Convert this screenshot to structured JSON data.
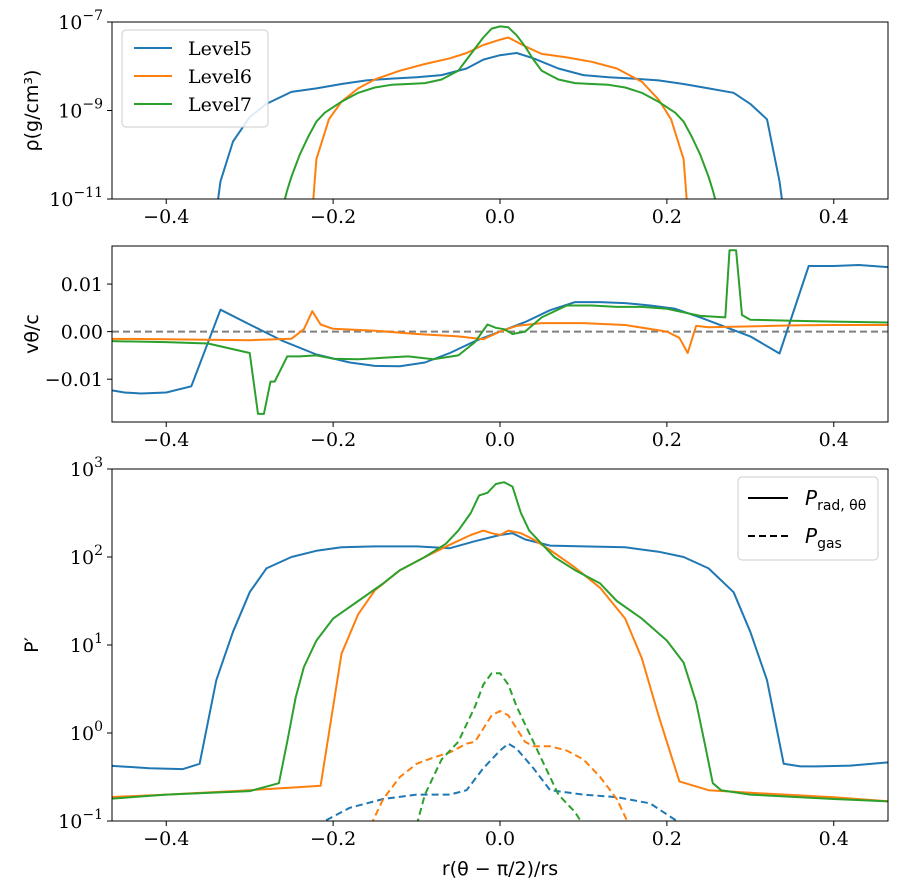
{
  "chart_data": [
    {
      "type": "line",
      "ylabel": "ρ(g/cm³)",
      "yscale": "log",
      "xlim": [
        -0.465,
        0.465
      ],
      "ylim_exp": [
        -11,
        -7
      ],
      "x_ticks": [
        "−0.4",
        "−0.2",
        "0.0",
        "0.2",
        "0.4"
      ],
      "y_ticks": [
        {
          "base": "10",
          "exp": "−11",
          "value": -11
        },
        {
          "base": "10",
          "exp": "−9",
          "value": -9
        },
        {
          "base": "10",
          "exp": "−7",
          "value": -7
        }
      ],
      "legend": {
        "placement": "upper-left",
        "entries": [
          "Level5",
          "Level6",
          "Level7"
        ]
      },
      "series": [
        {
          "name": "Level5",
          "color": "#1f77b4",
          "style": "solid",
          "x": [
            -0.34,
            -0.335,
            -0.32,
            -0.3,
            -0.28,
            -0.25,
            -0.22,
            -0.19,
            -0.16,
            -0.13,
            -0.1,
            -0.07,
            -0.04,
            -0.02,
            0.0,
            0.02,
            0.04,
            0.07,
            0.1,
            0.13,
            0.16,
            0.19,
            0.22,
            0.25,
            0.28,
            0.3,
            0.32,
            0.335,
            0.34
          ],
          "y": [
            -11.3,
            -10.6,
            -9.7,
            -9.15,
            -8.85,
            -8.58,
            -8.5,
            -8.4,
            -8.32,
            -8.28,
            -8.25,
            -8.2,
            -8.05,
            -7.85,
            -7.75,
            -7.7,
            -7.82,
            -8.05,
            -8.2,
            -8.25,
            -8.28,
            -8.32,
            -8.4,
            -8.5,
            -8.6,
            -8.85,
            -9.2,
            -10.6,
            -11.3
          ]
        },
        {
          "name": "Level6",
          "color": "#ff7f0e",
          "style": "solid",
          "x": [
            -0.225,
            -0.22,
            -0.205,
            -0.19,
            -0.17,
            -0.15,
            -0.12,
            -0.09,
            -0.06,
            -0.04,
            -0.02,
            0.0,
            0.01,
            0.03,
            0.05,
            0.08,
            0.11,
            0.14,
            0.17,
            0.19,
            0.205,
            0.22,
            0.225
          ],
          "y": [
            -11.3,
            -10.1,
            -9.2,
            -8.8,
            -8.5,
            -8.3,
            -8.1,
            -7.95,
            -7.82,
            -7.7,
            -7.52,
            -7.4,
            -7.35,
            -7.55,
            -7.72,
            -7.8,
            -7.9,
            -8.05,
            -8.35,
            -8.75,
            -9.2,
            -10.1,
            -11.3
          ]
        },
        {
          "name": "Level7",
          "color": "#2ca02c",
          "style": "solid",
          "x": [
            -0.262,
            -0.255,
            -0.25,
            -0.24,
            -0.23,
            -0.22,
            -0.21,
            -0.19,
            -0.17,
            -0.15,
            -0.13,
            -0.11,
            -0.09,
            -0.07,
            -0.05,
            -0.04,
            -0.03,
            -0.02,
            -0.01,
            0.0,
            0.01,
            0.02,
            0.03,
            0.04,
            0.05,
            0.07,
            0.09,
            0.11,
            0.13,
            0.15,
            0.17,
            0.19,
            0.21,
            0.22,
            0.23,
            0.24,
            0.25,
            0.255,
            0.262
          ],
          "y": [
            -11.3,
            -10.8,
            -10.5,
            -10.0,
            -9.6,
            -9.25,
            -9.05,
            -8.8,
            -8.6,
            -8.48,
            -8.42,
            -8.4,
            -8.38,
            -8.3,
            -8.1,
            -7.85,
            -7.6,
            -7.35,
            -7.15,
            -7.1,
            -7.12,
            -7.3,
            -7.55,
            -7.85,
            -8.1,
            -8.3,
            -8.38,
            -8.4,
            -8.42,
            -8.48,
            -8.6,
            -8.8,
            -9.05,
            -9.25,
            -9.6,
            -10.0,
            -10.5,
            -10.8,
            -11.3
          ]
        }
      ]
    },
    {
      "type": "line",
      "ylabel": "vθ/c",
      "yscale": "linear",
      "xlim": [
        -0.465,
        0.465
      ],
      "ylim": [
        -0.019,
        0.018
      ],
      "x_ticks": [
        "−0.4",
        "−0.2",
        "0.0",
        "0.2",
        "0.4"
      ],
      "y_ticks": [
        {
          "label": "0.01",
          "value": 0.01
        },
        {
          "label": "0.00",
          "value": 0.0
        },
        {
          "label": "−0.01",
          "value": -0.01
        }
      ],
      "reference_line": {
        "y": 0.0,
        "color": "#7f7f7f",
        "style": "dashed"
      },
      "series": [
        {
          "name": "Level5",
          "color": "#1f77b4",
          "style": "solid",
          "x": [
            -0.47,
            -0.45,
            -0.43,
            -0.4,
            -0.37,
            -0.335,
            -0.3,
            -0.26,
            -0.22,
            -0.18,
            -0.15,
            -0.12,
            -0.09,
            -0.06,
            -0.03,
            0.0,
            0.03,
            0.06,
            0.09,
            0.12,
            0.15,
            0.18,
            0.21,
            0.24,
            0.27,
            0.3,
            0.335,
            0.37,
            0.4,
            0.43,
            0.47
          ],
          "y": [
            -0.0122,
            -0.0128,
            -0.013,
            -0.0128,
            -0.0115,
            0.0046,
            0.0015,
            -0.002,
            -0.0048,
            -0.0065,
            -0.0072,
            -0.0073,
            -0.0065,
            -0.0045,
            -0.002,
            0.0,
            0.002,
            0.0045,
            0.0062,
            0.0062,
            0.006,
            0.0055,
            0.0048,
            0.003,
            0.001,
            -0.001,
            -0.0046,
            0.0138,
            0.0138,
            0.014,
            0.0135
          ]
        },
        {
          "name": "Level6",
          "color": "#ff7f0e",
          "style": "solid",
          "x": [
            -0.47,
            -0.4,
            -0.35,
            -0.3,
            -0.25,
            -0.235,
            -0.225,
            -0.215,
            -0.2,
            -0.15,
            -0.1,
            -0.05,
            -0.02,
            0.0,
            0.02,
            0.05,
            0.1,
            0.15,
            0.2,
            0.215,
            0.225,
            0.235,
            0.25,
            0.3,
            0.35,
            0.4,
            0.47
          ],
          "y": [
            -0.0015,
            -0.0016,
            -0.0017,
            -0.0018,
            -0.0015,
            0.0005,
            0.0043,
            0.0015,
            0.0006,
            0.0002,
            -0.0005,
            -0.001,
            -0.0016,
            0.0,
            0.0012,
            0.0018,
            0.0018,
            0.0014,
            0.0,
            -0.0013,
            -0.0045,
            0.0012,
            0.0009,
            0.0011,
            0.0013,
            0.0014,
            0.0014
          ]
        },
        {
          "name": "Level7",
          "color": "#2ca02c",
          "style": "solid",
          "x": [
            -0.47,
            -0.4,
            -0.35,
            -0.3,
            -0.29,
            -0.283,
            -0.275,
            -0.27,
            -0.255,
            -0.24,
            -0.22,
            -0.2,
            -0.17,
            -0.14,
            -0.11,
            -0.08,
            -0.05,
            -0.03,
            -0.015,
            -0.005,
            0.005,
            0.015,
            0.03,
            0.05,
            0.08,
            0.11,
            0.14,
            0.17,
            0.2,
            0.24,
            0.27,
            0.275,
            0.283,
            0.29,
            0.3,
            0.35,
            0.4,
            0.47
          ],
          "y": [
            -0.002,
            -0.0022,
            -0.0025,
            -0.0045,
            -0.0173,
            -0.0173,
            -0.0105,
            -0.0105,
            -0.0052,
            -0.0052,
            -0.005,
            -0.0057,
            -0.0058,
            -0.0055,
            -0.0052,
            -0.0058,
            -0.005,
            -0.0022,
            0.0015,
            0.0008,
            0.0005,
            -0.0005,
            0.0,
            0.003,
            0.0055,
            0.0055,
            0.0052,
            0.0052,
            0.0048,
            0.0033,
            0.003,
            0.0171,
            0.0171,
            0.0035,
            0.0025,
            0.0023,
            0.0021,
            0.0019
          ]
        }
      ]
    },
    {
      "type": "line",
      "ylabel": "P′",
      "xlabel": "r(θ − π/2)/rs",
      "yscale": "log",
      "xlim": [
        -0.465,
        0.465
      ],
      "ylim_exp": [
        -1,
        3
      ],
      "x_ticks": [
        "−0.4",
        "−0.2",
        "0.0",
        "0.2",
        "0.4"
      ],
      "y_ticks": [
        {
          "base": "10",
          "exp": "−1",
          "value": -1
        },
        {
          "base": "10",
          "exp": "0",
          "value": 0
        },
        {
          "base": "10",
          "exp": "1",
          "value": 1
        },
        {
          "base": "10",
          "exp": "2",
          "value": 2
        },
        {
          "base": "10",
          "exp": "3",
          "value": 3
        }
      ],
      "legend": {
        "placement": "upper-right",
        "entries": [
          {
            "style": "solid",
            "label": "P",
            "sub": "rad, θθ"
          },
          {
            "style": "dashed",
            "label": "P",
            "sub": "gas"
          }
        ]
      },
      "series": [
        {
          "name": "Level5",
          "color": "#1f77b4",
          "style": "solid",
          "x": [
            -0.47,
            -0.42,
            -0.38,
            -0.36,
            -0.34,
            -0.32,
            -0.3,
            -0.28,
            -0.25,
            -0.22,
            -0.19,
            -0.15,
            -0.1,
            -0.06,
            -0.03,
            0.0,
            0.015,
            0.03,
            0.06,
            0.1,
            0.15,
            0.19,
            0.22,
            0.25,
            0.28,
            0.3,
            0.32,
            0.34,
            0.36,
            0.38,
            0.42,
            0.47
          ],
          "y": [
            -0.37,
            -0.4,
            -0.41,
            -0.35,
            0.6,
            1.15,
            1.6,
            1.87,
            2.0,
            2.07,
            2.11,
            2.12,
            2.12,
            2.1,
            2.18,
            2.25,
            2.27,
            2.2,
            2.13,
            2.12,
            2.11,
            2.06,
            2.0,
            1.87,
            1.6,
            1.15,
            0.6,
            -0.35,
            -0.38,
            -0.38,
            -0.37,
            -0.33
          ]
        },
        {
          "name": "Level6",
          "color": "#ff7f0e",
          "style": "solid",
          "x": [
            -0.47,
            -0.4,
            -0.3,
            -0.25,
            -0.215,
            -0.19,
            -0.17,
            -0.15,
            -0.12,
            -0.09,
            -0.06,
            -0.035,
            -0.02,
            -0.01,
            0.0,
            0.01,
            0.025,
            0.04,
            0.06,
            0.09,
            0.12,
            0.15,
            0.17,
            0.19,
            0.215,
            0.25,
            0.3,
            0.4,
            0.47
          ],
          "y": [
            -0.73,
            -0.7,
            -0.65,
            -0.62,
            -0.6,
            0.9,
            1.35,
            1.62,
            1.85,
            2.0,
            2.14,
            2.25,
            2.3,
            2.27,
            2.25,
            2.3,
            2.27,
            2.2,
            2.08,
            1.88,
            1.65,
            1.3,
            0.85,
            0.2,
            -0.55,
            -0.65,
            -0.68,
            -0.73,
            -0.78
          ]
        },
        {
          "name": "Level7",
          "color": "#2ca02c",
          "style": "solid",
          "x": [
            -0.47,
            -0.4,
            -0.3,
            -0.265,
            -0.255,
            -0.245,
            -0.235,
            -0.22,
            -0.2,
            -0.17,
            -0.14,
            -0.12,
            -0.09,
            -0.065,
            -0.05,
            -0.035,
            -0.025,
            -0.015,
            -0.005,
            0.005,
            0.015,
            0.025,
            0.035,
            0.05,
            0.065,
            0.09,
            0.12,
            0.14,
            0.17,
            0.2,
            0.22,
            0.235,
            0.245,
            0.255,
            0.265,
            0.3,
            0.4,
            0.47
          ],
          "y": [
            -0.75,
            -0.7,
            -0.66,
            -0.57,
            -0.1,
            0.4,
            0.75,
            1.05,
            1.3,
            1.5,
            1.7,
            1.85,
            2.0,
            2.15,
            2.3,
            2.5,
            2.7,
            2.73,
            2.83,
            2.85,
            2.8,
            2.5,
            2.3,
            2.15,
            2.0,
            1.85,
            1.7,
            1.5,
            1.3,
            1.05,
            0.8,
            0.35,
            -0.1,
            -0.57,
            -0.65,
            -0.7,
            -0.75,
            -0.78
          ]
        },
        {
          "name": "Level5 gas",
          "color": "#1f77b4",
          "style": "dashed",
          "x": [
            -0.22,
            -0.18,
            -0.14,
            -0.1,
            -0.06,
            -0.04,
            -0.02,
            0.0,
            0.01,
            0.02,
            0.04,
            0.06,
            0.1,
            0.14,
            0.18,
            0.22
          ],
          "y": [
            -1.05,
            -0.85,
            -0.75,
            -0.7,
            -0.7,
            -0.65,
            -0.4,
            -0.2,
            -0.12,
            -0.18,
            -0.4,
            -0.65,
            -0.7,
            -0.73,
            -0.8,
            -1.05
          ]
        },
        {
          "name": "Level6 gas",
          "color": "#ff7f0e",
          "style": "dashed",
          "x": [
            -0.155,
            -0.14,
            -0.12,
            -0.1,
            -0.08,
            -0.06,
            -0.04,
            -0.03,
            -0.02,
            -0.01,
            0.0,
            0.01,
            0.02,
            0.03,
            0.04,
            0.06,
            0.08,
            0.1,
            0.12,
            0.14,
            0.155
          ],
          "y": [
            -1.05,
            -0.75,
            -0.5,
            -0.35,
            -0.28,
            -0.22,
            -0.12,
            -0.1,
            0.05,
            0.2,
            0.25,
            0.2,
            0.05,
            -0.1,
            -0.15,
            -0.15,
            -0.2,
            -0.3,
            -0.5,
            -0.75,
            -1.05
          ]
        },
        {
          "name": "Level7 gas",
          "color": "#2ca02c",
          "style": "dashed",
          "x": [
            -0.1,
            -0.09,
            -0.07,
            -0.05,
            -0.04,
            -0.03,
            -0.02,
            -0.01,
            0.0,
            0.01,
            0.02,
            0.03,
            0.04,
            0.05,
            0.07,
            0.09,
            0.1
          ],
          "y": [
            -1.05,
            -0.7,
            -0.3,
            -0.1,
            0.1,
            0.3,
            0.55,
            0.68,
            0.68,
            0.55,
            0.3,
            0.1,
            -0.1,
            -0.3,
            -0.7,
            -0.9,
            -1.05
          ]
        }
      ]
    }
  ]
}
